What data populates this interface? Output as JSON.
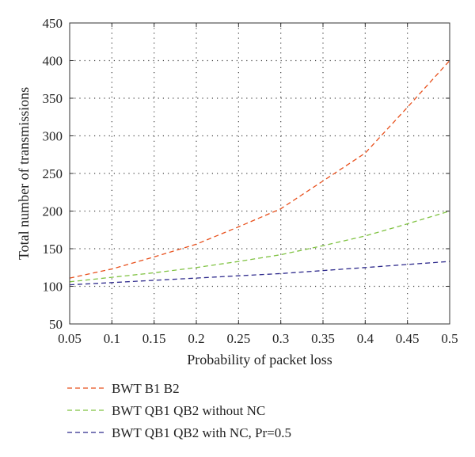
{
  "chart_data": {
    "type": "line",
    "title": "",
    "xlabel": "Probability of packet loss",
    "ylabel": "Total number of transmissions",
    "xlim": [
      0.05,
      0.5
    ],
    "ylim": [
      50,
      450
    ],
    "x_ticks": [
      0.05,
      0.1,
      0.15,
      0.2,
      0.25,
      0.3,
      0.35,
      0.4,
      0.45,
      0.5
    ],
    "x_tick_labels": [
      "0.05",
      "0.1",
      "0.15",
      "0.2",
      "0.25",
      "0.3",
      "0.35",
      "0.4",
      "0.45",
      "0.5"
    ],
    "y_ticks": [
      50,
      100,
      150,
      200,
      250,
      300,
      350,
      400,
      450
    ],
    "y_tick_labels": [
      "50",
      "100",
      "150",
      "200",
      "250",
      "300",
      "350",
      "400",
      "450"
    ],
    "grid": true,
    "grid_style": "dotted",
    "legend_position": "below",
    "x": [
      0.05,
      0.1,
      0.15,
      0.2,
      0.25,
      0.3,
      0.35,
      0.4,
      0.45,
      0.5
    ],
    "series": [
      {
        "name": "BWT B1 B2",
        "color": "#e8501c",
        "line_style": "dashed",
        "values": [
          111,
          123,
          139,
          156,
          179,
          203,
          240,
          277,
          338,
          400
        ]
      },
      {
        "name": "BWT QB1 QB2 without NC",
        "color": "#7fc241",
        "line_style": "dashed",
        "values": [
          106,
          112,
          118,
          125,
          133,
          142,
          154,
          167,
          183,
          200
        ]
      },
      {
        "name": "BWT QB1 QB2 with NC, Pr=0.5",
        "color": "#2e2a8c",
        "line_style": "dashed",
        "values": [
          102,
          105,
          108,
          111,
          114,
          117,
          121,
          125,
          129,
          133
        ]
      }
    ]
  }
}
